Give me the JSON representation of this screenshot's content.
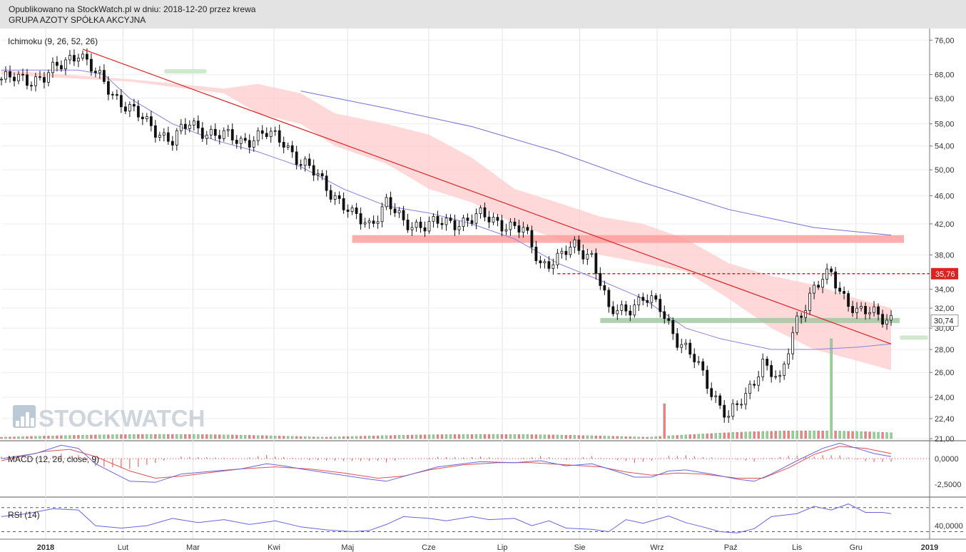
{
  "header": {
    "published_line": "Opublikowano na StockWatch.pl w dniu: 2018-12-20 przez krewa",
    "company_line": "GRUPA AZOTY SPÓŁKA AKCYJNA"
  },
  "watermark": "STOCKWATCH",
  "colors": {
    "up_candle": "#ffffff",
    "down_candle": "#111111",
    "trendline": "#dd2222",
    "ma_short": "#8a7fe0",
    "ma_long": "#6f6fd6",
    "cloud": "#ffcccc",
    "resistance_zone": "#ff9999",
    "support_zone": "#9ec79e",
    "price_marker": "#dd2222",
    "volume_up": "#8fd48f",
    "volume_down": "#f08080",
    "macd_line": "#6666dd",
    "signal_line": "#e05050",
    "rsi_line": "#6666dd"
  },
  "chart_data": [
    {
      "type": "candlestick",
      "title": "Ichimoku (9, 26, 52, 26)",
      "x_labels": [
        "2018",
        "Lut",
        "Mar",
        "Kwi",
        "Maj",
        "Cze",
        "Lip",
        "Sie",
        "Wrz",
        "Paź",
        "Lis",
        "Gru",
        "2019"
      ],
      "y_ticks": [
        "76,00",
        "68,00",
        "63,00",
        "58,00",
        "54,00",
        "50,00",
        "46,00",
        "42,00",
        "38,00",
        "34,00",
        "32,00",
        "30,00",
        "28,00",
        "26,00",
        "24,00",
        "22,40",
        "21,00"
      ],
      "y_scale": "log",
      "ylim": [
        21,
        78
      ],
      "close_path": [
        [
          0,
          67
        ],
        [
          6,
          67
        ],
        [
          10,
          67.5
        ],
        [
          14,
          70
        ],
        [
          18,
          73.5
        ],
        [
          22,
          68
        ],
        [
          26,
          64
        ],
        [
          30,
          61
        ],
        [
          34,
          58
        ],
        [
          40,
          55
        ],
        [
          44,
          58
        ],
        [
          50,
          56
        ],
        [
          56,
          55
        ],
        [
          62,
          56
        ],
        [
          66,
          55
        ],
        [
          70,
          51
        ],
        [
          74,
          49
        ],
        [
          78,
          46
        ],
        [
          82,
          43
        ],
        [
          86,
          42
        ],
        [
          90,
          45
        ],
        [
          94,
          42
        ],
        [
          98,
          42
        ],
        [
          104,
          42
        ],
        [
          108,
          42.5
        ],
        [
          112,
          43
        ],
        [
          118,
          42
        ],
        [
          122,
          41
        ],
        [
          126,
          37
        ],
        [
          130,
          37.5
        ],
        [
          134,
          39
        ],
        [
          138,
          38
        ],
        [
          142,
          31.5
        ],
        [
          146,
          32
        ],
        [
          150,
          33
        ],
        [
          154,
          32
        ],
        [
          158,
          29
        ],
        [
          162,
          27
        ],
        [
          166,
          24.5
        ],
        [
          170,
          22.5
        ],
        [
          174,
          24
        ],
        [
          178,
          27
        ],
        [
          182,
          25
        ],
        [
          186,
          31
        ],
        [
          190,
          34
        ],
        [
          194,
          35.8
        ],
        [
          196,
          34
        ],
        [
          200,
          31.5
        ],
        [
          204,
          31.5
        ],
        [
          208,
          31
        ]
      ],
      "ma_short_path": [
        [
          0,
          69
        ],
        [
          10,
          69
        ],
        [
          18,
          69
        ],
        [
          24,
          68
        ],
        [
          30,
          63
        ],
        [
          40,
          58
        ],
        [
          50,
          55
        ],
        [
          60,
          53
        ],
        [
          70,
          50.5
        ],
        [
          80,
          47
        ],
        [
          90,
          44.5
        ],
        [
          100,
          43.5
        ],
        [
          110,
          42
        ],
        [
          120,
          40
        ],
        [
          130,
          37
        ],
        [
          140,
          35
        ],
        [
          150,
          33
        ],
        [
          160,
          30
        ],
        [
          168,
          29
        ],
        [
          180,
          28
        ],
        [
          190,
          28
        ],
        [
          200,
          28.2
        ],
        [
          208,
          28.5
        ]
      ],
      "ma_long_path": [
        [
          70,
          64.5
        ],
        [
          90,
          61
        ],
        [
          110,
          57.5
        ],
        [
          130,
          53
        ],
        [
          150,
          48
        ],
        [
          170,
          44
        ],
        [
          190,
          41.5
        ],
        [
          208,
          40.5
        ]
      ],
      "trendline": [
        [
          19,
          73.8
        ],
        [
          208,
          28.5
        ]
      ],
      "cloud_upper": [
        [
          0,
          69
        ],
        [
          30,
          67
        ],
        [
          52,
          65
        ],
        [
          60,
          66
        ],
        [
          70,
          64
        ],
        [
          78,
          60
        ],
        [
          90,
          58
        ],
        [
          100,
          56
        ],
        [
          110,
          52
        ],
        [
          120,
          47
        ],
        [
          130,
          45
        ],
        [
          140,
          43
        ],
        [
          150,
          42
        ],
        [
          160,
          40
        ],
        [
          170,
          37
        ],
        [
          180,
          35.5
        ],
        [
          190,
          34.5
        ],
        [
          200,
          33
        ],
        [
          208,
          32
        ]
      ],
      "cloud_lower": [
        [
          0,
          68
        ],
        [
          30,
          66.5
        ],
        [
          52,
          64
        ],
        [
          60,
          60
        ],
        [
          70,
          58
        ],
        [
          78,
          54
        ],
        [
          90,
          51
        ],
        [
          100,
          47
        ],
        [
          110,
          45
        ],
        [
          120,
          42
        ],
        [
          130,
          40
        ],
        [
          140,
          38
        ],
        [
          150,
          37
        ],
        [
          160,
          36
        ],
        [
          170,
          33
        ],
        [
          180,
          30
        ],
        [
          190,
          28
        ],
        [
          200,
          27
        ],
        [
          208,
          26.2
        ]
      ],
      "resistance_zone": [
        39.5,
        40.5
      ],
      "support_zone": [
        30.5,
        31
      ],
      "price_marker": "35,76",
      "price_marker_value": 35.76,
      "support_marker": "30,74",
      "support_marker_value": 30.74,
      "volume_spikes": [
        [
          155,
          0.35
        ],
        [
          194,
          1.0
        ]
      ]
    },
    {
      "type": "line",
      "title": "MACD (12, 26, close, 9)",
      "y_ticks": [
        "0,0000",
        "-2,5000"
      ],
      "ylim": [
        -3.6,
        1.6
      ],
      "macd_path": [
        [
          0,
          0
        ],
        [
          8,
          0.5
        ],
        [
          14,
          1.3
        ],
        [
          18,
          1.0
        ],
        [
          22,
          -0.5
        ],
        [
          30,
          -2.2
        ],
        [
          36,
          -2.3
        ],
        [
          42,
          -1.5
        ],
        [
          50,
          -1.2
        ],
        [
          56,
          -1.0
        ],
        [
          62,
          -0.5
        ],
        [
          66,
          -0.7
        ],
        [
          70,
          -1.0
        ],
        [
          78,
          -1.5
        ],
        [
          86,
          -2.0
        ],
        [
          90,
          -2.2
        ],
        [
          96,
          -1.5
        ],
        [
          102,
          -0.8
        ],
        [
          108,
          -0.5
        ],
        [
          112,
          -0.3
        ],
        [
          120,
          -0.4
        ],
        [
          126,
          -0.2
        ],
        [
          132,
          -0.7
        ],
        [
          138,
          -0.5
        ],
        [
          142,
          -1.0
        ],
        [
          148,
          -1.8
        ],
        [
          152,
          -1.8
        ],
        [
          156,
          -1.2
        ],
        [
          160,
          -1.1
        ],
        [
          166,
          -1.5
        ],
        [
          172,
          -2.0
        ],
        [
          176,
          -2.2
        ],
        [
          180,
          -1.5
        ],
        [
          186,
          -0.2
        ],
        [
          192,
          1.0
        ],
        [
          196,
          1.5
        ],
        [
          200,
          1.0
        ],
        [
          204,
          0.5
        ],
        [
          208,
          0.2
        ]
      ],
      "signal_path": [
        [
          0,
          -0.2
        ],
        [
          10,
          0.7
        ],
        [
          16,
          0.9
        ],
        [
          22,
          0.2
        ],
        [
          30,
          -1.2
        ],
        [
          36,
          -1.9
        ],
        [
          42,
          -1.7
        ],
        [
          50,
          -1.3
        ],
        [
          56,
          -1.0
        ],
        [
          64,
          -0.8
        ],
        [
          72,
          -1.0
        ],
        [
          80,
          -1.4
        ],
        [
          88,
          -1.9
        ],
        [
          94,
          -1.7
        ],
        [
          100,
          -1.1
        ],
        [
          108,
          -0.6
        ],
        [
          116,
          -0.4
        ],
        [
          124,
          -0.4
        ],
        [
          132,
          -0.6
        ],
        [
          140,
          -0.8
        ],
        [
          146,
          -1.3
        ],
        [
          152,
          -1.6
        ],
        [
          158,
          -1.4
        ],
        [
          164,
          -1.5
        ],
        [
          172,
          -1.9
        ],
        [
          178,
          -1.9
        ],
        [
          184,
          -0.9
        ],
        [
          190,
          0.4
        ],
        [
          196,
          1.2
        ],
        [
          202,
          1.0
        ],
        [
          208,
          0.5
        ]
      ]
    },
    {
      "type": "line",
      "title": "RSI (14)",
      "y_ticks": [
        "40,0000"
      ],
      "ylim": [
        20,
        85
      ],
      "rsi_path": [
        [
          0,
          55
        ],
        [
          6,
          60
        ],
        [
          12,
          68
        ],
        [
          18,
          66
        ],
        [
          22,
          40
        ],
        [
          28,
          36
        ],
        [
          34,
          40
        ],
        [
          40,
          52
        ],
        [
          46,
          45
        ],
        [
          52,
          50
        ],
        [
          58,
          42
        ],
        [
          64,
          48
        ],
        [
          70,
          38
        ],
        [
          76,
          33
        ],
        [
          82,
          30
        ],
        [
          86,
          32
        ],
        [
          90,
          42
        ],
        [
          94,
          55
        ],
        [
          100,
          52
        ],
        [
          104,
          48
        ],
        [
          110,
          55
        ],
        [
          114,
          50
        ],
        [
          120,
          52
        ],
        [
          124,
          40
        ],
        [
          128,
          48
        ],
        [
          132,
          36
        ],
        [
          138,
          34
        ],
        [
          142,
          30
        ],
        [
          146,
          50
        ],
        [
          150,
          44
        ],
        [
          156,
          56
        ],
        [
          160,
          45
        ],
        [
          164,
          38
        ],
        [
          168,
          30
        ],
        [
          172,
          28
        ],
        [
          176,
          35
        ],
        [
          180,
          55
        ],
        [
          186,
          60
        ],
        [
          190,
          72
        ],
        [
          194,
          66
        ],
        [
          198,
          76
        ],
        [
          202,
          62
        ],
        [
          206,
          62
        ],
        [
          208,
          60
        ]
      ]
    }
  ]
}
